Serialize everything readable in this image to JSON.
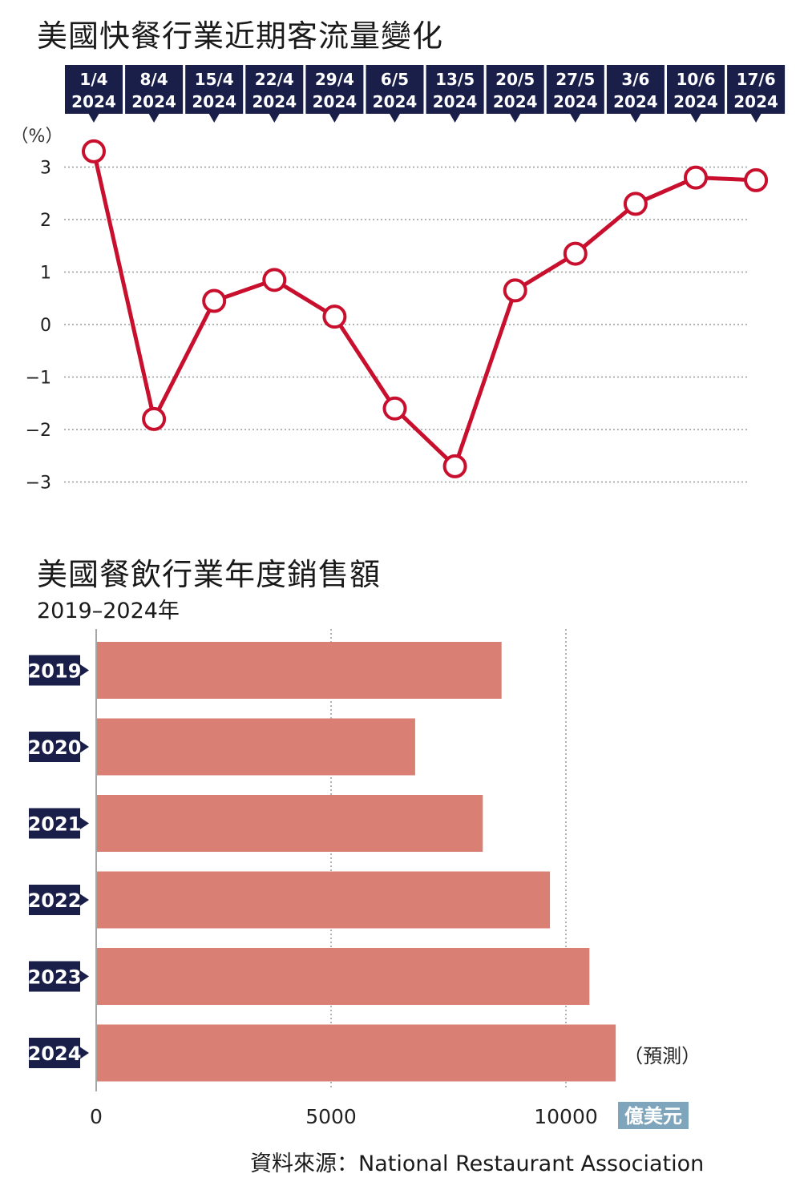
{
  "colors": {
    "line": "#c8102e",
    "bar": "#da7f73",
    "label_bg": "#1a1f4a",
    "unit_bg": "#7ea5bc",
    "grid": "#9a9a9a"
  },
  "source": "資料來源：National Restaurant Association",
  "chart_data": [
    {
      "type": "line",
      "title": "美國快餐行業近期客流量變化",
      "ylabel": "（%）",
      "ylim": [
        -3,
        3
      ],
      "yticks": [
        "3",
        "2",
        "1",
        "0",
        "−1",
        "−2",
        "−3"
      ],
      "ytick_values": [
        3,
        2,
        1,
        0,
        -1,
        -2,
        -3
      ],
      "grid": true,
      "x": [
        {
          "day": "1/4",
          "year": "2024"
        },
        {
          "day": "8/4",
          "year": "2024"
        },
        {
          "day": "15/4",
          "year": "2024"
        },
        {
          "day": "22/4",
          "year": "2024"
        },
        {
          "day": "29/4",
          "year": "2024"
        },
        {
          "day": "6/5",
          "year": "2024"
        },
        {
          "day": "13/5",
          "year": "2024"
        },
        {
          "day": "20/5",
          "year": "2024"
        },
        {
          "day": "27/5",
          "year": "2024"
        },
        {
          "day": "3/6",
          "year": "2024"
        },
        {
          "day": "10/6",
          "year": "2024"
        },
        {
          "day": "17/6",
          "year": "2024"
        }
      ],
      "values": [
        3.3,
        -1.8,
        0.45,
        0.85,
        0.15,
        -1.6,
        -2.7,
        0.65,
        1.35,
        2.3,
        2.8,
        2.75
      ]
    },
    {
      "type": "bar",
      "orientation": "horizontal",
      "title": "美國餐飲行業年度銷售額",
      "subtitle": "2019–2024年",
      "categories": [
        "2019",
        "2020",
        "2021",
        "2022",
        "2023",
        "2024"
      ],
      "values": [
        8630,
        6790,
        8230,
        9660,
        10500,
        11060
      ],
      "xlim": [
        0,
        12500
      ],
      "xticks": [
        "0",
        "5000",
        "10000"
      ],
      "xtick_values": [
        0,
        5000,
        10000
      ],
      "unit": "億美元",
      "annotation": "（預測）",
      "annotation_index": 5,
      "grid": true
    }
  ]
}
